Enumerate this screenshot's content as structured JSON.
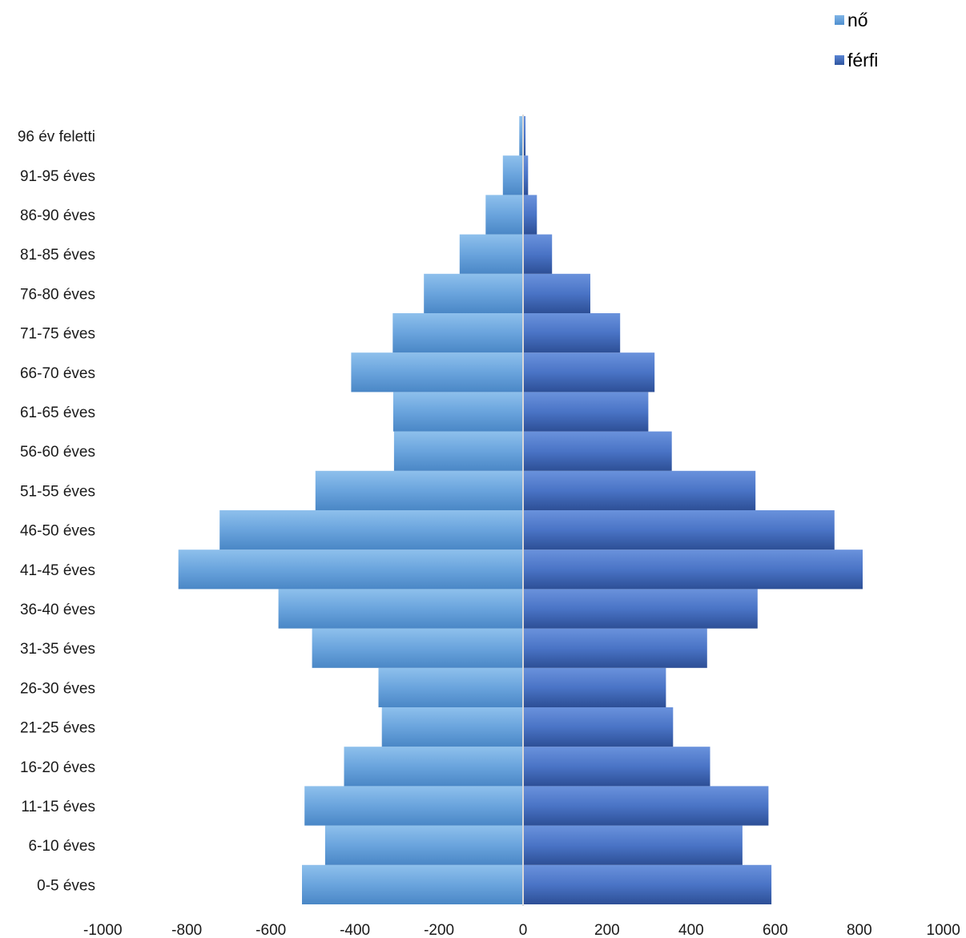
{
  "chart_data": {
    "type": "bar",
    "orientation": "horizontal",
    "categories": [
      "0-5 éves",
      "6-10 éves",
      "11-15 éves",
      "16-20 éves",
      "21-25 éves",
      "26-30 éves",
      "31-35 éves",
      "36-40 éves",
      "41-45 éves",
      "46-50 éves",
      "51-55 éves",
      "56-60 éves",
      "61-65 éves",
      "66-70 éves",
      "71-75 éves",
      "76-80 éves",
      "81-85 éves",
      "86-90 éves",
      "91-95 éves",
      "96 év feletti"
    ],
    "series": [
      {
        "name": "nő",
        "color": "#5b9bd5",
        "values": [
          -526,
          -471,
          -520,
          -426,
          -336,
          -344,
          -502,
          -582,
          -820,
          -722,
          -494,
          -307,
          -309,
          -409,
          -310,
          -236,
          -151,
          -89,
          -48,
          -9
        ]
      },
      {
        "name": "férfi",
        "color": "#4472c4",
        "values": [
          591,
          522,
          584,
          445,
          357,
          340,
          438,
          558,
          808,
          741,
          553,
          354,
          298,
          313,
          231,
          160,
          69,
          33,
          12,
          6
        ]
      }
    ],
    "xlim": [
      -1000,
      1000
    ],
    "xticks": [
      "-1000",
      "-800",
      "-600",
      "-400",
      "-200",
      "0",
      "200",
      "400",
      "600",
      "800",
      "1000"
    ],
    "grid": false,
    "legend_position": "top-right",
    "title": "",
    "xlabel": "",
    "ylabel": ""
  }
}
